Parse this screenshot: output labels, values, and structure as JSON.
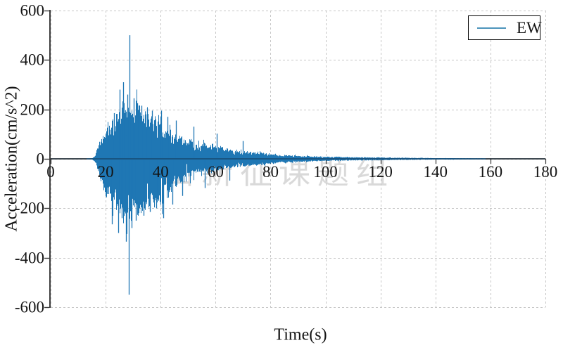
{
  "watermark": {
    "text": "山新征课题组",
    "color": "#d9d9d9"
  },
  "chart_data": {
    "type": "line",
    "title": "",
    "xlabel": "Time(s)",
    "ylabel": "Acceleration(cm/s^2)",
    "xlim": [
      0,
      180
    ],
    "ylim": [
      -600,
      600
    ],
    "xticks": [
      0,
      20,
      40,
      60,
      80,
      100,
      120,
      140,
      160,
      180
    ],
    "yticks": [
      -600,
      -400,
      -200,
      0,
      200,
      400,
      600
    ],
    "grid": {
      "style": "dashed",
      "color": "#c6c6c6"
    },
    "axis_color": "#3d3d3d",
    "zero_line_color": "#10253a",
    "legend": {
      "position": "upper right",
      "entries": [
        {
          "label": "EW",
          "color": "#4d94bc"
        }
      ]
    },
    "series": [
      {
        "name": "EW",
        "color": "#1f77b4",
        "kind": "seismogram-accelerogram",
        "onset_s": 16,
        "end_s": 158,
        "peak_positive_cm_s2": 500,
        "peak_negative_cm_s2": -550,
        "peak_time_s": 28.8,
        "neg_asymmetry": 1.12,
        "envelope_t_amp": [
          [
            13,
            1.5
          ],
          [
            15,
            3
          ],
          [
            16,
            12
          ],
          [
            17,
            45
          ],
          [
            18,
            80
          ],
          [
            19,
            105
          ],
          [
            20,
            125
          ],
          [
            21,
            145
          ],
          [
            22,
            165
          ],
          [
            23,
            175
          ],
          [
            24,
            188
          ],
          [
            25,
            200
          ],
          [
            26,
            212
          ],
          [
            27,
            222
          ],
          [
            28,
            232
          ],
          [
            29,
            222
          ],
          [
            30,
            210
          ],
          [
            31,
            202
          ],
          [
            32,
            196
          ],
          [
            33,
            188
          ],
          [
            34,
            182
          ],
          [
            35,
            180
          ],
          [
            36,
            175
          ],
          [
            37,
            168
          ],
          [
            38,
            165
          ],
          [
            39,
            162
          ],
          [
            40,
            166
          ],
          [
            41,
            150
          ],
          [
            42,
            138
          ],
          [
            43,
            126
          ],
          [
            44,
            116
          ],
          [
            45,
            108
          ],
          [
            46,
            100
          ],
          [
            48,
            89
          ],
          [
            50,
            80
          ],
          [
            52,
            73
          ],
          [
            54,
            67
          ],
          [
            56,
            61
          ],
          [
            58,
            56
          ],
          [
            60,
            51
          ],
          [
            62,
            46
          ],
          [
            64,
            42
          ],
          [
            66,
            39
          ],
          [
            68,
            36
          ],
          [
            70,
            33
          ],
          [
            72,
            30
          ],
          [
            74,
            28
          ],
          [
            76,
            26
          ],
          [
            78,
            24
          ],
          [
            80,
            22
          ],
          [
            82,
            20
          ],
          [
            84,
            18
          ],
          [
            86,
            16
          ],
          [
            88,
            15
          ],
          [
            90,
            13
          ],
          [
            92,
            12
          ],
          [
            94,
            11
          ],
          [
            96,
            10
          ],
          [
            98,
            9.5
          ],
          [
            100,
            9
          ],
          [
            104,
            8
          ],
          [
            108,
            7.3
          ],
          [
            112,
            6.7
          ],
          [
            116,
            6
          ],
          [
            120,
            5.4
          ],
          [
            124,
            4.9
          ],
          [
            128,
            4.5
          ],
          [
            132,
            4.1
          ],
          [
            136,
            3.7
          ],
          [
            140,
            3.3
          ],
          [
            144,
            3
          ],
          [
            148,
            2.7
          ],
          [
            152,
            2.4
          ],
          [
            156,
            2.1
          ],
          [
            158,
            2
          ]
        ],
        "spikes_t_v": [
          [
            22.3,
            -265
          ],
          [
            23.1,
            185
          ],
          [
            24.6,
            -300
          ],
          [
            25.2,
            280
          ],
          [
            25.9,
            -240
          ],
          [
            26.4,
            310
          ],
          [
            27.3,
            -335
          ],
          [
            27.8,
            260
          ],
          [
            28.3,
            -550
          ],
          [
            28.75,
            500
          ],
          [
            29.4,
            -280
          ],
          [
            30.2,
            245
          ],
          [
            30.9,
            -250
          ],
          [
            31.6,
            225
          ],
          [
            33.0,
            215
          ],
          [
            33.8,
            -230
          ],
          [
            35.0,
            205
          ],
          [
            36.2,
            -215
          ],
          [
            36.8,
            195
          ],
          [
            38.5,
            -200
          ],
          [
            40.3,
            195
          ],
          [
            40.9,
            -240
          ],
          [
            42.5,
            170
          ],
          [
            44.2,
            -185
          ],
          [
            45.5,
            155
          ],
          [
            48.0,
            -150
          ],
          [
            52.0,
            130
          ],
          [
            56.0,
            -118
          ],
          [
            60.5,
            102
          ],
          [
            65.0,
            -88
          ],
          [
            70.0,
            72
          ]
        ]
      }
    ]
  }
}
